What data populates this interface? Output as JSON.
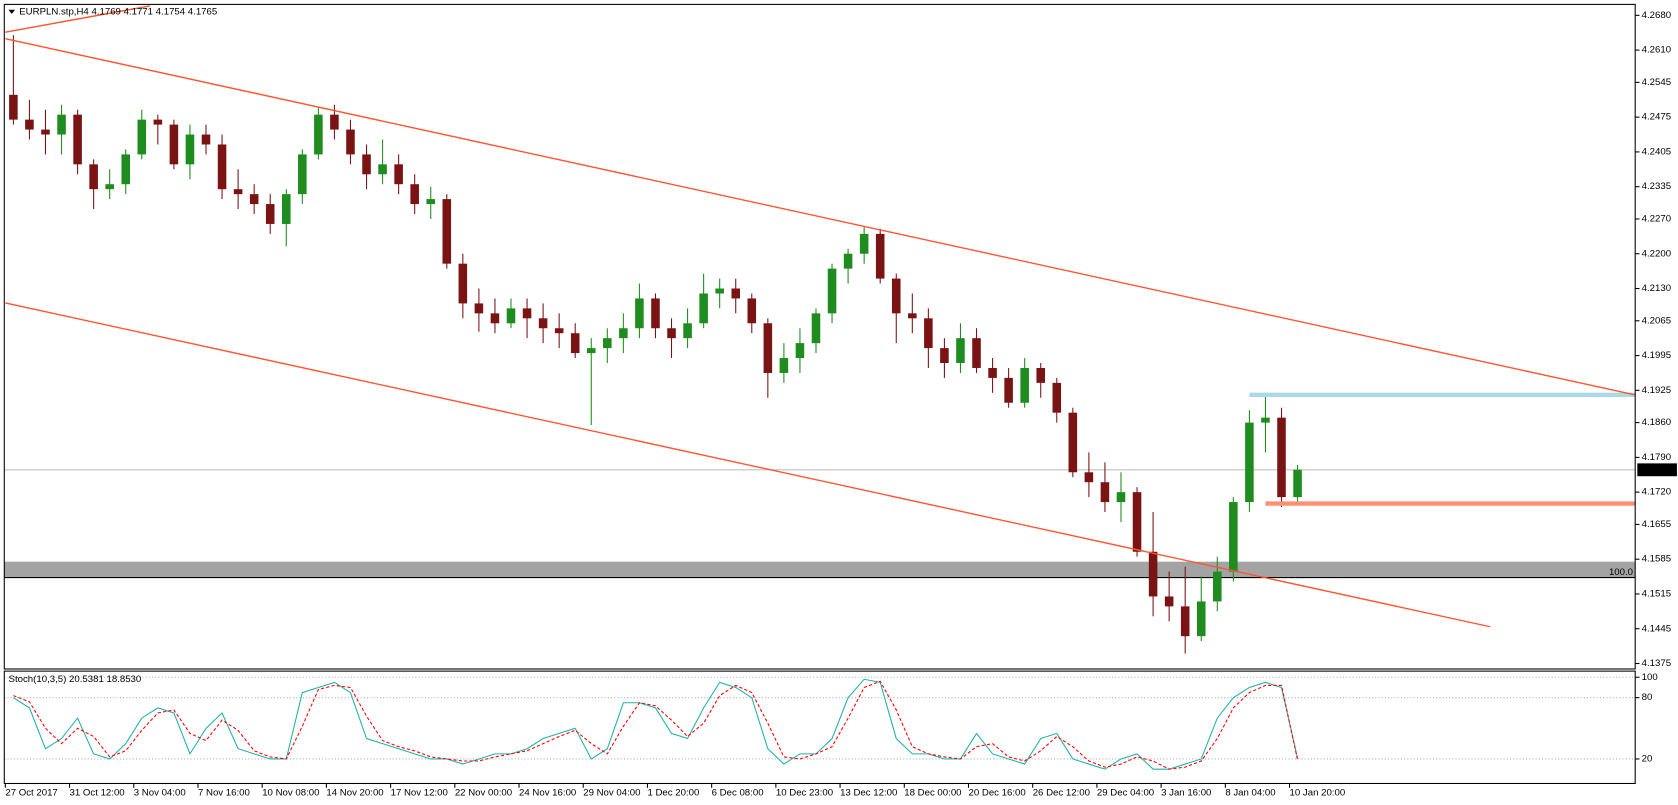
{
  "chart_data": [
    {
      "type": "candlestick",
      "title": "EURPLN.stp,H4  4.1769 4.1771 4.1754 4.1765",
      "categories": [
        "27 Oct 2017",
        null,
        null,
        null,
        "31 Oct 12:00",
        null,
        null,
        null,
        "3 Nov 04:00",
        null,
        null,
        null,
        "7 Nov 16:00",
        null,
        null,
        null,
        "10 Nov 08:00",
        null,
        null,
        null,
        "14 Nov 20:00",
        null,
        null,
        null,
        "17 Nov 12:00",
        null,
        null,
        null,
        "22 Nov 00:00",
        null,
        null,
        null,
        "24 Nov 16:00",
        null,
        null,
        null,
        "29 Nov 04:00",
        null,
        null,
        null,
        "1 Dec 20:00",
        null,
        null,
        null,
        "6 Dec 08:00",
        null,
        null,
        null,
        "10 Dec 23:00",
        null,
        null,
        null,
        "13 Dec 12:00",
        null,
        null,
        null,
        "18 Dec 00:00",
        null,
        null,
        null,
        "20 Dec 16:00",
        null,
        null,
        null,
        "26 Dec 12:00",
        null,
        null,
        null,
        "29 Dec 04:00",
        null,
        null,
        null,
        "3 Jan 16:00",
        null,
        null,
        null,
        "8 Jan 04:00",
        null,
        null,
        null,
        "10 Jan 20:00"
      ],
      "open": [
        4.252,
        4.247,
        4.245,
        4.244,
        4.248,
        4.238,
        4.233,
        4.234,
        4.24,
        4.247,
        4.246,
        4.238,
        4.244,
        4.242,
        4.233,
        4.232,
        4.23,
        4.226,
        4.232,
        4.24,
        4.248,
        4.245,
        4.24,
        4.236,
        4.238,
        4.234,
        4.23,
        4.231,
        4.218,
        4.21,
        4.208,
        4.206,
        4.209,
        4.207,
        4.205,
        4.204,
        4.2,
        4.201,
        4.203,
        4.205,
        4.211,
        4.205,
        4.203,
        4.206,
        4.212,
        4.213,
        4.211,
        4.206,
        4.196,
        4.199,
        4.202,
        4.208,
        4.217,
        4.22,
        4.224,
        4.215,
        4.208,
        4.207,
        4.201,
        4.198,
        4.203,
        4.197,
        4.195,
        4.19,
        4.197,
        4.194,
        4.188,
        4.176,
        4.174,
        4.17,
        4.172,
        4.16,
        4.151,
        4.149,
        4.143,
        4.15,
        4.156,
        4.17,
        4.186,
        4.187,
        4.171
      ],
      "high": [
        4.264,
        4.251,
        4.249,
        4.25,
        4.249,
        4.239,
        4.237,
        4.241,
        4.249,
        4.248,
        4.247,
        4.246,
        4.246,
        4.244,
        4.237,
        4.234,
        4.232,
        4.233,
        4.241,
        4.2495,
        4.25,
        4.247,
        4.242,
        4.243,
        4.24,
        4.236,
        4.2335,
        4.232,
        4.22,
        4.213,
        4.211,
        4.211,
        4.211,
        4.21,
        4.208,
        4.206,
        4.203,
        4.205,
        4.208,
        4.214,
        4.212,
        4.207,
        4.209,
        4.216,
        4.215,
        4.215,
        4.212,
        4.207,
        4.202,
        4.205,
        4.209,
        4.218,
        4.221,
        4.2255,
        4.225,
        4.216,
        4.212,
        4.209,
        4.203,
        4.206,
        4.205,
        4.199,
        4.197,
        4.199,
        4.198,
        4.195,
        4.189,
        4.18,
        4.178,
        4.176,
        4.173,
        4.168,
        4.156,
        4.157,
        4.155,
        4.159,
        4.171,
        4.1885,
        4.1915,
        4.189,
        4.1775
      ],
      "low": [
        4.246,
        4.243,
        4.24,
        4.24,
        4.236,
        4.229,
        4.231,
        4.232,
        4.239,
        4.242,
        4.237,
        4.235,
        4.24,
        4.231,
        4.229,
        4.228,
        4.224,
        4.2215,
        4.23,
        4.239,
        4.243,
        4.238,
        4.233,
        4.234,
        4.232,
        4.228,
        4.227,
        4.217,
        4.207,
        4.2043,
        4.204,
        4.205,
        4.203,
        4.202,
        4.201,
        4.199,
        4.1855,
        4.198,
        4.2,
        4.203,
        4.203,
        4.199,
        4.201,
        4.205,
        4.209,
        4.208,
        4.204,
        4.191,
        4.194,
        4.196,
        4.2,
        4.206,
        4.214,
        4.218,
        4.214,
        4.202,
        4.204,
        4.197,
        4.195,
        4.196,
        4.196,
        4.192,
        4.189,
        4.189,
        4.191,
        4.186,
        4.175,
        4.171,
        4.168,
        4.166,
        4.159,
        4.147,
        4.146,
        4.1395,
        4.142,
        4.148,
        4.154,
        4.168,
        4.18,
        4.169,
        4.17
      ],
      "close": [
        4.247,
        4.245,
        4.244,
        4.248,
        4.238,
        4.233,
        4.234,
        4.24,
        4.247,
        4.246,
        4.238,
        4.244,
        4.242,
        4.233,
        4.232,
        4.23,
        4.226,
        4.232,
        4.24,
        4.248,
        4.245,
        4.24,
        4.236,
        4.238,
        4.234,
        4.23,
        4.231,
        4.218,
        4.21,
        4.208,
        4.206,
        4.209,
        4.207,
        4.205,
        4.204,
        4.2,
        4.201,
        4.203,
        4.205,
        4.211,
        4.205,
        4.203,
        4.206,
        4.212,
        4.213,
        4.211,
        4.206,
        4.196,
        4.199,
        4.202,
        4.208,
        4.217,
        4.22,
        4.224,
        4.215,
        4.208,
        4.207,
        4.201,
        4.198,
        4.203,
        4.197,
        4.195,
        4.19,
        4.197,
        4.194,
        4.188,
        4.176,
        4.174,
        4.17,
        4.172,
        4.16,
        4.151,
        4.149,
        4.143,
        4.15,
        4.156,
        4.17,
        4.186,
        4.187,
        4.171,
        4.1765
      ],
      "up_color": "#1e8c1e",
      "down_color": "#7a1414",
      "ylim": [
        4.1364,
        4.2702
      ],
      "yticks": [
        {
          "value": 4.268,
          "label": "4.2680"
        },
        {
          "value": 4.261,
          "label": "4.2610"
        },
        4.2545,
        4.2475,
        4.2405,
        4.2335,
        {
          "value": 4.227,
          "label": "4.2270"
        },
        {
          "value": 4.22,
          "label": "4.2200"
        },
        {
          "value": 4.213,
          "label": "4.2130"
        },
        4.2065,
        4.1995,
        4.1925,
        {
          "value": 4.186,
          "label": "4.1860"
        },
        {
          "value": 4.179,
          "label": "4.1790"
        },
        {
          "value": 4.172,
          "label": "4.1720"
        },
        4.1655,
        4.1585,
        4.1515,
        4.1445,
        4.1375
      ],
      "last_price": 4.1765,
      "zone": [
        4.1548,
        4.158
      ],
      "zone_color": "#a3a3a3",
      "zone_label": "100.0",
      "trendlines": [
        {
          "x": [
            0,
            101
          ],
          "y": [
            4.2633,
            4.1916
          ],
          "color": "#ff5530"
        },
        {
          "x": [
            0,
            92
          ],
          "y": [
            4.2101,
            4.1449
          ],
          "color": "#ff5530"
        },
        {
          "x": [
            0,
            8.5
          ],
          "y": [
            4.2646,
            4.2699
          ],
          "color": "#ff5530"
        }
      ],
      "levels": [
        {
          "value": 4.1916,
          "from": 77,
          "color": "#a8dbe6"
        },
        {
          "value": 4.1697,
          "from": 78,
          "color": "#ff9070"
        }
      ]
    },
    {
      "type": "line",
      "title": "Stoch(10,3,5) 20.5381 18.8530",
      "ylim": [
        -4,
        106
      ],
      "yticks": [
        100,
        80,
        20
      ],
      "grid": true,
      "series": [
        {
          "color": "#20b2aa",
          "dash": false,
          "values": [
            80,
            70,
            30,
            40,
            60,
            25,
            20,
            35,
            60,
            70,
            65,
            25,
            50,
            65,
            30,
            25,
            20,
            20,
            85,
            90,
            95,
            85,
            40,
            35,
            30,
            25,
            20,
            20,
            15,
            20,
            25,
            25,
            30,
            40,
            45,
            50,
            20,
            30,
            75,
            75,
            70,
            45,
            40,
            70,
            95,
            90,
            80,
            30,
            15,
            25,
            25,
            40,
            80,
            98,
            95,
            40,
            25,
            25,
            20,
            20,
            45,
            25,
            20,
            15,
            40,
            45,
            20,
            15,
            10,
            20,
            25,
            10,
            10,
            15,
            20,
            60,
            80,
            90,
            95,
            90,
            20.5381
          ]
        },
        {
          "color": "#ff0000",
          "dash": true,
          "values": [
            82,
            76,
            50,
            35,
            50,
            42,
            22,
            28,
            48,
            65,
            68,
            45,
            38,
            58,
            48,
            28,
            22,
            20,
            52,
            88,
            92,
            90,
            62,
            38,
            32,
            28,
            22,
            20,
            18,
            18,
            22,
            25,
            28,
            35,
            42,
            48,
            35,
            25,
            52,
            75,
            72,
            58,
            42,
            55,
            82,
            92,
            85,
            55,
            22,
            20,
            25,
            32,
            60,
            90,
            96,
            68,
            32,
            25,
            22,
            20,
            32,
            35,
            22,
            18,
            28,
            42,
            32,
            18,
            12,
            15,
            22,
            18,
            10,
            12,
            18,
            40,
            70,
            85,
            92,
            92,
            18.853
          ]
        }
      ]
    }
  ]
}
